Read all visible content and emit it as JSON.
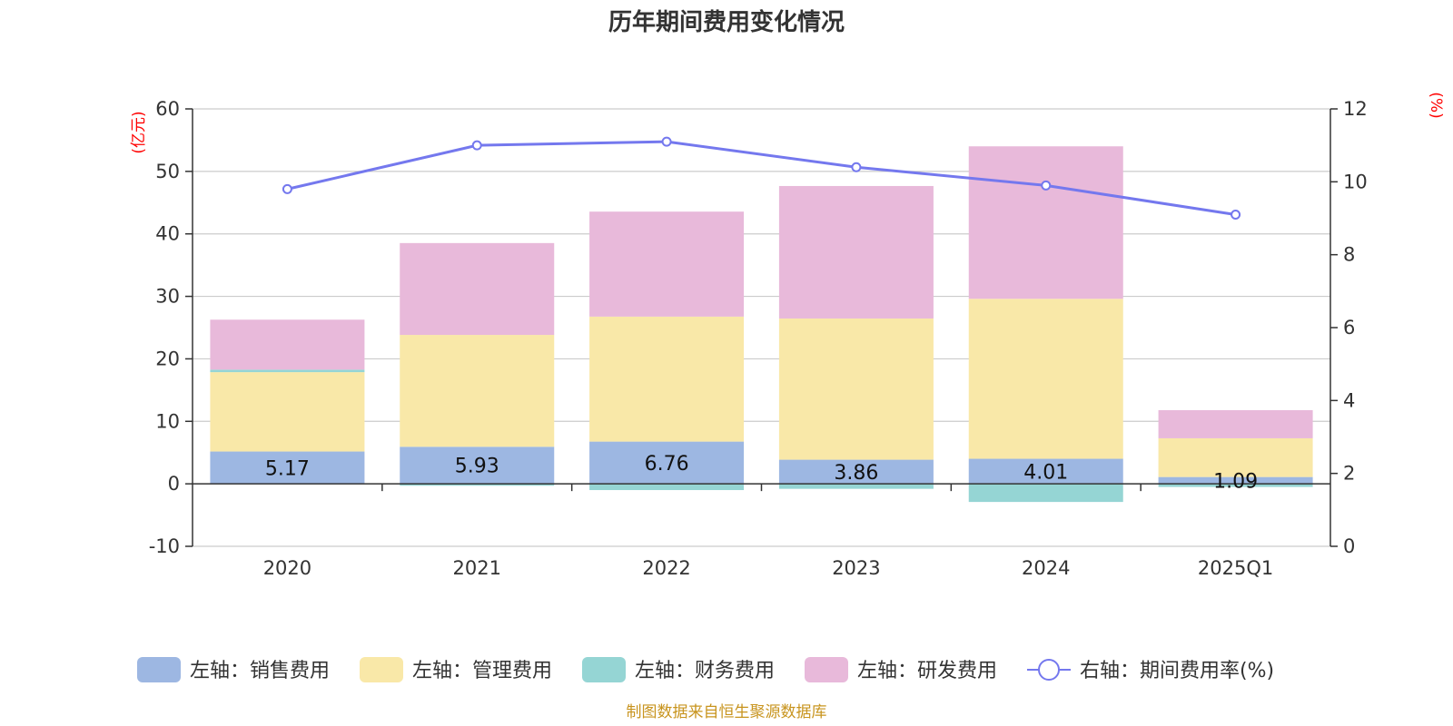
{
  "title": "历年期间费用变化情况",
  "source": "制图数据来自恒生聚源数据库",
  "chart_data": {
    "type": "bar",
    "stacked": true,
    "categories": [
      "2020",
      "2021",
      "2022",
      "2023",
      "2024",
      "2025Q1"
    ],
    "left_axis": {
      "unit": "(亿元)",
      "min": -10,
      "max": 60,
      "ticks": [
        -10,
        0,
        10,
        20,
        30,
        40,
        50,
        60
      ]
    },
    "right_axis": {
      "unit": "(%)",
      "min": 0,
      "max": 12,
      "ticks": [
        0,
        2,
        4,
        6,
        8,
        10,
        12
      ]
    },
    "grid": true,
    "legend_position": "bottom",
    "series": [
      {
        "name": "左轴：销售费用",
        "axis": "left",
        "color": "#9db7e2",
        "values": [
          5.17,
          5.93,
          6.76,
          3.86,
          4.01,
          1.09
        ],
        "labels": [
          "5.17",
          "5.93",
          "6.76",
          "3.86",
          "4.01",
          "1.09"
        ]
      },
      {
        "name": "左轴：管理费用",
        "axis": "left",
        "color": "#f9e8a8",
        "values": [
          12.7,
          17.9,
          20.0,
          22.6,
          25.6,
          6.2
        ]
      },
      {
        "name": "左轴：财务费用",
        "axis": "left",
        "color": "#95d5d4",
        "values": [
          0.4,
          -0.3,
          -1.0,
          -0.8,
          -2.9,
          -0.5
        ]
      },
      {
        "name": "左轴：研发费用",
        "axis": "left",
        "color": "#e8b9da",
        "values": [
          8.0,
          14.7,
          16.8,
          21.2,
          24.4,
          4.5
        ]
      },
      {
        "name": "右轴：期间费用率(%)",
        "axis": "right",
        "type": "line",
        "color": "#7478ee",
        "values": [
          9.8,
          11.0,
          11.1,
          10.4,
          9.9,
          9.1
        ]
      }
    ]
  }
}
